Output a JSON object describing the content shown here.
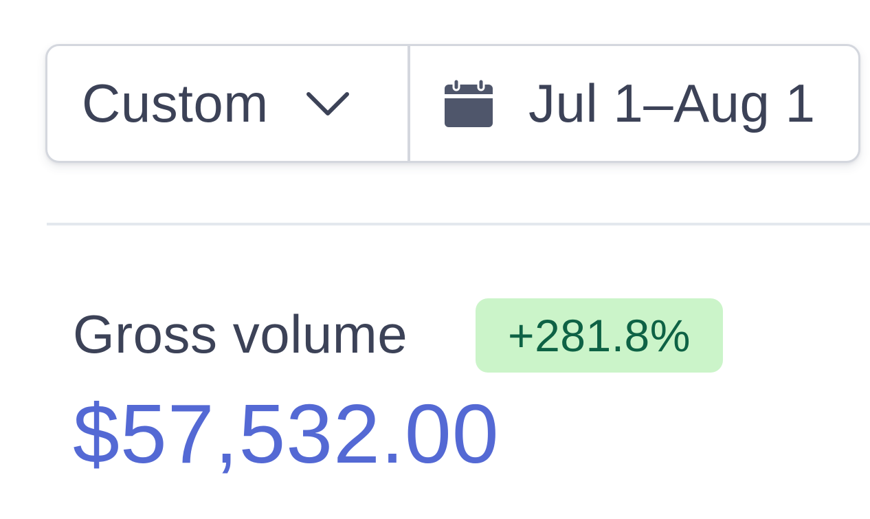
{
  "date_filter": {
    "range_preset": "Custom",
    "range_icon": "chevron-down-icon",
    "date_icon": "calendar-icon",
    "date_range": "Jul 1–Aug 1"
  },
  "metric": {
    "title": "Gross volume",
    "change": "+281.8%",
    "value": "$57,532.00"
  },
  "colors": {
    "text": "#3c4257",
    "accent": "#5469d4",
    "badge_bg": "#cbf4c9",
    "badge_text": "#0e6245"
  }
}
